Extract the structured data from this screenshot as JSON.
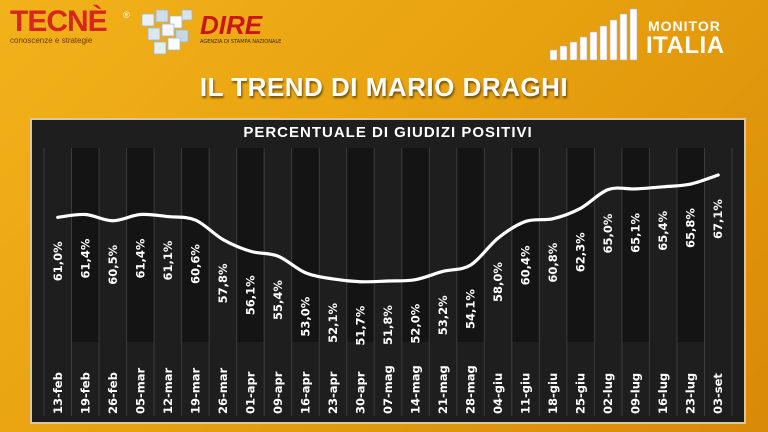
{
  "branding": {
    "tecne_name": "TECNÈ",
    "tecne_mark": "®",
    "tecne_tagline": "conoscenze e strategie",
    "dire_name": "DIRE",
    "dire_tagline": "AGENZIA DI STAMPA NAZIONALE",
    "monitor_top": "MONITOR",
    "monitor_main": "ITALIA"
  },
  "colors": {
    "background": "#eba512",
    "panel": "#1e1e1e",
    "grid_alt": "#141414",
    "line": "#ffffff",
    "tecne_red": "#d7261e",
    "dire_red": "#c9161b"
  },
  "chart_data": {
    "type": "line",
    "title": "IL TREND DI MARIO DRAGHI",
    "subtitle": "PERCENTUALE DI GIUDIZI POSITIVI",
    "categories": [
      "13-feb",
      "19-feb",
      "26-feb",
      "05-mar",
      "12-mar",
      "19-mar",
      "26-mar",
      "01-apr",
      "09-apr",
      "16-apr",
      "23-apr",
      "30-apr",
      "07-mag",
      "14-mag",
      "21-mag",
      "28-mag",
      "04-giu",
      "11-giu",
      "18-giu",
      "25-giu",
      "02-lug",
      "09-lug",
      "16-lug",
      "23-lug",
      "03-set"
    ],
    "values": [
      61.0,
      61.4,
      60.5,
      61.4,
      61.1,
      60.6,
      57.8,
      56.1,
      55.4,
      53.0,
      52.1,
      51.7,
      51.8,
      52.0,
      53.2,
      54.1,
      58.0,
      60.4,
      60.8,
      62.3,
      65.0,
      65.1,
      65.4,
      65.8,
      67.1
    ],
    "labels": [
      "61,0%",
      "61,4%",
      "60,5%",
      "61,4%",
      "61,1%",
      "60,6%",
      "57,8%",
      "56,1%",
      "55,4%",
      "53,0%",
      "52,1%",
      "51,7%",
      "51,8%",
      "52,0%",
      "53,2%",
      "54,1%",
      "58,0%",
      "60,4%",
      "60,8%",
      "62,3%",
      "65,0%",
      "65,1%",
      "65,4%",
      "65,8%",
      "67,1%"
    ],
    "ylim": [
      43,
      71
    ],
    "xlabel": "",
    "ylabel": "",
    "grid": true,
    "legend": "none"
  }
}
